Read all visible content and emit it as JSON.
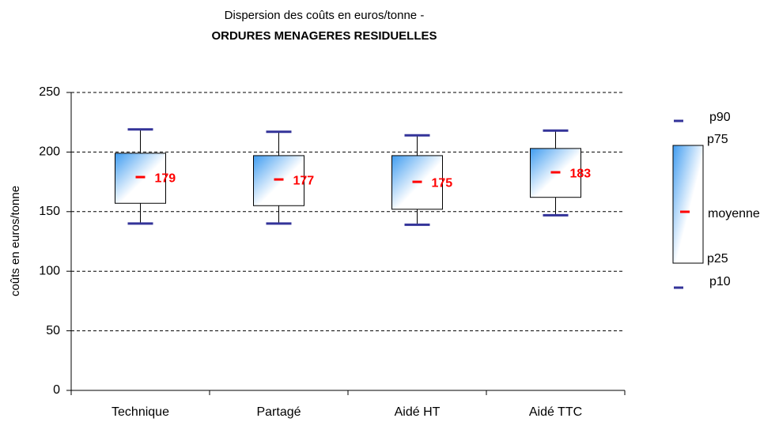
{
  "chart_data": {
    "type": "box",
    "title": "Dispersion des coûts en euros/tonne -",
    "subtitle": "ORDURES MENAGERES RESIDUELLES",
    "y_label": "coûts en euros/tonne",
    "categories": [
      "Technique",
      "Partagé",
      "Aidé HT",
      "Aidé TTC"
    ],
    "series": [
      {
        "name": "p90",
        "color": "#333399",
        "values": [
          219,
          217,
          214,
          218
        ]
      },
      {
        "name": "p75",
        "color": "#000000",
        "values": [
          199,
          197,
          197,
          203
        ]
      },
      {
        "name": "moyenne",
        "color": "#ff0000",
        "values": [
          179,
          177,
          175,
          183
        ]
      },
      {
        "name": "p25",
        "color": "#000000",
        "values": [
          157,
          155,
          152,
          162
        ]
      },
      {
        "name": "p10",
        "color": "#333399",
        "values": [
          140,
          140,
          139,
          147
        ]
      }
    ],
    "ylim": [
      0,
      250
    ],
    "yticks": [
      0,
      50,
      100,
      150,
      200,
      250
    ],
    "grid": true
  }
}
